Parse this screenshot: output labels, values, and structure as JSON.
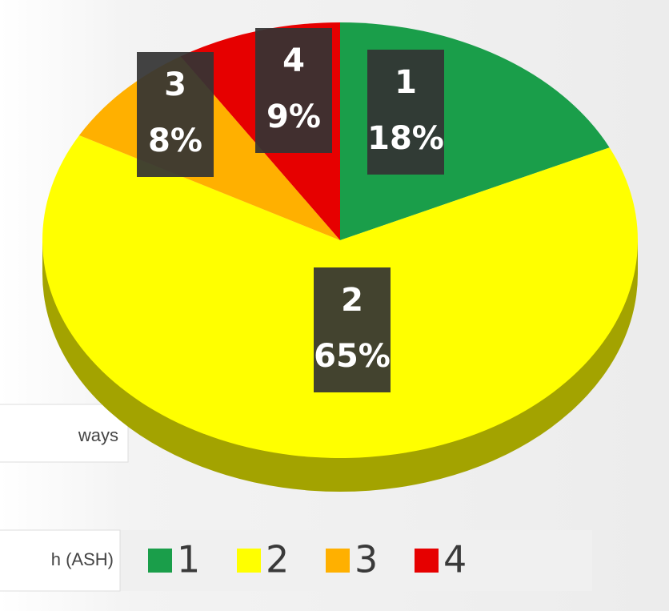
{
  "chart_data": {
    "type": "pie",
    "categories": [
      "1",
      "2",
      "3",
      "4"
    ],
    "values": [
      18,
      65,
      8,
      9
    ],
    "value_labels": [
      "18%",
      "65%",
      "8%",
      "9%"
    ],
    "colors": [
      "#1a9e4a",
      "#ffff00",
      "#ffb000",
      "#e60000"
    ],
    "legend": "bottom",
    "annotations": [
      "ways",
      "h (ASH)"
    ]
  }
}
